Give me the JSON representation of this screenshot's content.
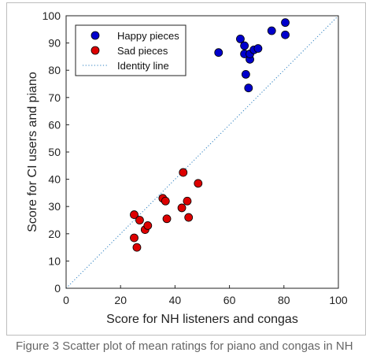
{
  "chart_data": {
    "type": "scatter",
    "xlabel": "Score for NH listeners and congas",
    "ylabel": "Score for CI users and piano",
    "xlim": [
      0,
      100
    ],
    "ylim": [
      0,
      100
    ],
    "xticks": [
      0,
      20,
      40,
      60,
      80,
      100
    ],
    "yticks": [
      0,
      10,
      20,
      30,
      40,
      50,
      60,
      70,
      80,
      90,
      100
    ],
    "grid": false,
    "legend_position": "top-left",
    "series": [
      {
        "name": "Happy pieces",
        "color": "#0000cc",
        "marker": "circle",
        "points": [
          {
            "x": 56,
            "y": 86.5
          },
          {
            "x": 64,
            "y": 91.5
          },
          {
            "x": 65.5,
            "y": 89
          },
          {
            "x": 65.5,
            "y": 86
          },
          {
            "x": 66,
            "y": 78.5
          },
          {
            "x": 67,
            "y": 73.5
          },
          {
            "x": 67.5,
            "y": 84
          },
          {
            "x": 67.5,
            "y": 86
          },
          {
            "x": 69,
            "y": 87.5
          },
          {
            "x": 70.5,
            "y": 88
          },
          {
            "x": 75.5,
            "y": 94.5
          },
          {
            "x": 80.5,
            "y": 97.5
          },
          {
            "x": 80.5,
            "y": 93
          }
        ]
      },
      {
        "name": "Sad pieces",
        "color": "#dd0000",
        "marker": "circle",
        "points": [
          {
            "x": 25,
            "y": 27
          },
          {
            "x": 25,
            "y": 18.5
          },
          {
            "x": 26,
            "y": 15
          },
          {
            "x": 27,
            "y": 25
          },
          {
            "x": 29,
            "y": 21.5
          },
          {
            "x": 30,
            "y": 23
          },
          {
            "x": 35.5,
            "y": 33
          },
          {
            "x": 36.5,
            "y": 32
          },
          {
            "x": 37,
            "y": 25.5
          },
          {
            "x": 42.5,
            "y": 29.5
          },
          {
            "x": 43,
            "y": 42.5
          },
          {
            "x": 44.5,
            "y": 32
          },
          {
            "x": 45,
            "y": 26
          },
          {
            "x": 48.5,
            "y": 38.5
          }
        ]
      },
      {
        "name": "Identity line",
        "color": "#2b7fc0",
        "style": "dotted",
        "points": [
          {
            "x": 0,
            "y": 0
          },
          {
            "x": 100,
            "y": 100
          }
        ]
      }
    ]
  },
  "caption": "Figure 3  Scatter plot of mean ratings for piano and congas in NH"
}
